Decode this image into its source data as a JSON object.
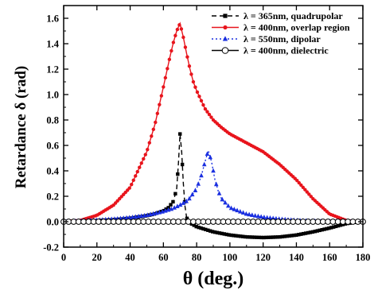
{
  "chart_data": {
    "type": "line",
    "title": "",
    "xlabel": "θ (deg.)",
    "ylabel": "Retardance δ  (rad)",
    "xlim": [
      0,
      180
    ],
    "ylim": [
      -0.2,
      1.7
    ],
    "xticks": [
      0,
      20,
      40,
      60,
      80,
      100,
      120,
      140,
      160,
      180
    ],
    "yticks": [
      -0.2,
      0.0,
      0.2,
      0.4,
      0.6,
      0.8,
      1.0,
      1.2,
      1.4,
      1.6
    ],
    "grid": false,
    "legend_position": "top-right",
    "series": [
      {
        "name": "λ = 365nm, quadrupolar",
        "color": "#000000",
        "line_style": "dashed",
        "marker": "square",
        "x": [
          0,
          10,
          20,
          30,
          40,
          50,
          55,
          60,
          63,
          66,
          68,
          69,
          70,
          71,
          72,
          73,
          74,
          76,
          80,
          90,
          100,
          110,
          120,
          130,
          140,
          150,
          160,
          170,
          175,
          180
        ],
        "y": [
          0.0,
          0.003,
          0.008,
          0.015,
          0.027,
          0.047,
          0.062,
          0.085,
          0.11,
          0.16,
          0.26,
          0.45,
          0.69,
          0.55,
          0.3,
          0.12,
          0.03,
          -0.01,
          -0.04,
          -0.08,
          -0.105,
          -0.12,
          -0.125,
          -0.12,
          -0.105,
          -0.08,
          -0.05,
          -0.015,
          -0.005,
          0.0
        ]
      },
      {
        "name": "λ = 400nm, overlap region",
        "color": "#e8141c",
        "line_style": "solid",
        "marker": "circle-filled",
        "x": [
          0,
          10,
          20,
          30,
          40,
          50,
          55,
          60,
          64,
          66,
          68,
          70,
          72,
          74,
          76,
          78,
          80,
          85,
          90,
          95,
          100,
          110,
          120,
          130,
          140,
          150,
          160,
          170,
          175,
          180
        ],
        "y": [
          0.0,
          0.01,
          0.05,
          0.13,
          0.27,
          0.55,
          0.77,
          1.06,
          1.3,
          1.41,
          1.5,
          1.56,
          1.45,
          1.32,
          1.2,
          1.1,
          1.03,
          0.89,
          0.8,
          0.74,
          0.69,
          0.62,
          0.55,
          0.45,
          0.33,
          0.18,
          0.06,
          0.01,
          0.0,
          0.0
        ]
      },
      {
        "name": "λ = 550nm, dipolar",
        "color": "#1a2fe0",
        "line_style": "dotted",
        "marker": "triangle-up",
        "x": [
          0,
          10,
          20,
          30,
          40,
          50,
          60,
          65,
          70,
          75,
          80,
          83,
          85,
          87,
          89,
          91,
          93,
          95,
          100,
          110,
          120,
          130,
          140,
          150,
          160,
          170,
          180
        ],
        "y": [
          0.0,
          0.005,
          0.012,
          0.02,
          0.032,
          0.05,
          0.08,
          0.1,
          0.13,
          0.17,
          0.26,
          0.37,
          0.47,
          0.56,
          0.47,
          0.33,
          0.24,
          0.18,
          0.11,
          0.06,
          0.035,
          0.02,
          0.01,
          0.005,
          0.002,
          0.001,
          0.0
        ]
      },
      {
        "name": "λ = 400nm, dielectric",
        "color": "#000000",
        "line_style": "solid",
        "marker": "circle-open",
        "x": [
          0,
          20,
          40,
          60,
          80,
          100,
          120,
          140,
          160,
          180
        ],
        "y": [
          0.0,
          0.0,
          0.0,
          0.0,
          0.0,
          0.0,
          0.0,
          0.0,
          0.0,
          0.0
        ]
      }
    ]
  }
}
